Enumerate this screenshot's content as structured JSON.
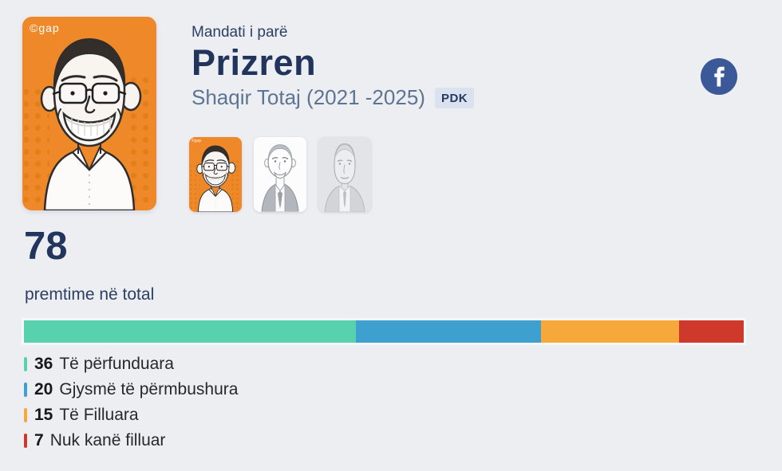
{
  "header": {
    "mandate_label": "Mandati i parë",
    "municipality": "Prizren",
    "mayor": "Shaqir Totaj (2021 -2025)",
    "party_badge": "PDK"
  },
  "portrait": {
    "logo": "©gap",
    "card_color": "#ef8829"
  },
  "thumbnails": [
    {
      "active": true
    },
    {
      "active": false
    },
    {
      "active": false
    }
  ],
  "social": {
    "facebook_color": "#3b5998"
  },
  "summary": {
    "total": "78",
    "total_label": "premtime në total"
  },
  "chart_data": {
    "type": "bar",
    "stacked": true,
    "orientation": "horizontal",
    "title": "premtime në total",
    "total": 78,
    "categories": [
      "Të përfunduara",
      "Gjysmë të përmbushura",
      "Të Filluara",
      "Nuk kanë filluar"
    ],
    "values": [
      36,
      20,
      15,
      7
    ],
    "colors": [
      "#57d1ae",
      "#3da0cf",
      "#f6a93a",
      "#cf392b"
    ],
    "legend_position": "bottom-left",
    "grid": false
  }
}
